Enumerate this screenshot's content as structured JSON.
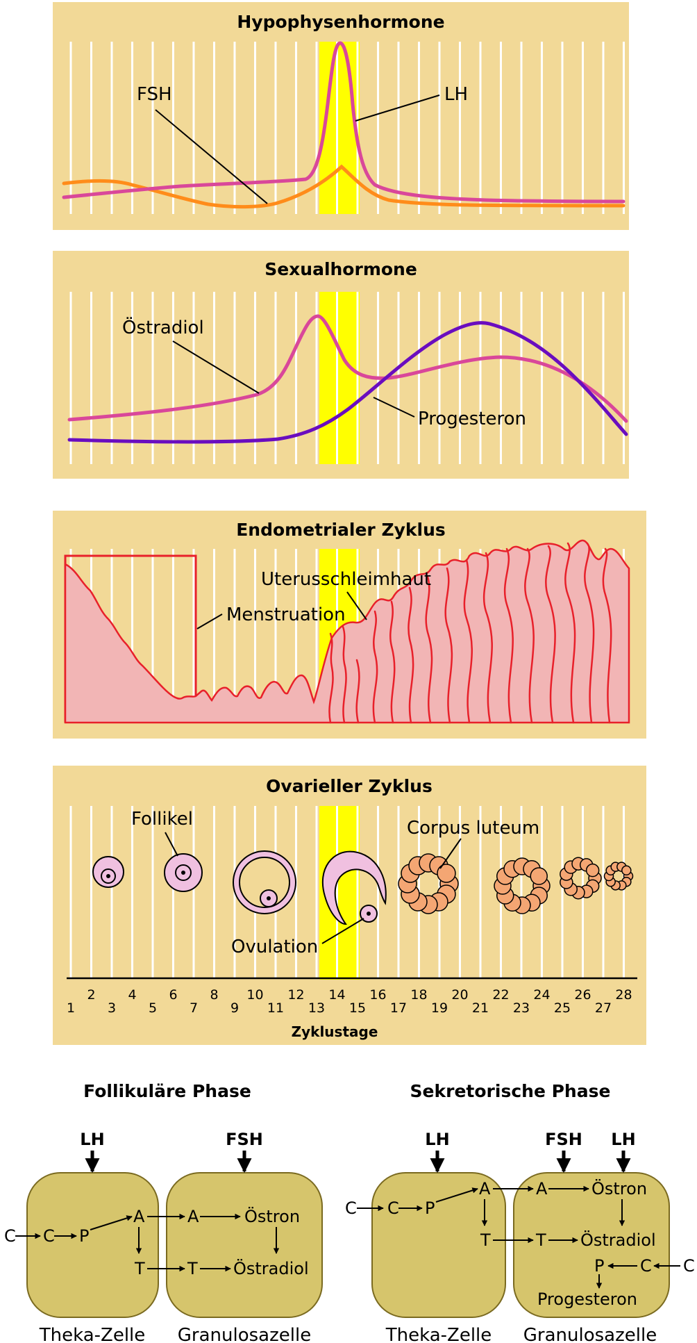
{
  "panels": {
    "hypophyse": {
      "title": "Hypophysenhormone",
      "fsh_label": "FSH",
      "lh_label": "LH"
    },
    "sexual": {
      "title": "Sexualhormone",
      "oestradiol_label": "Östradiol",
      "progesteron_label": "Progesteron"
    },
    "endometrial": {
      "title": "Endometrialer Zyklus",
      "uterus_label": "Uterusschleimhaut",
      "menstruation_label": "Menstruation"
    },
    "ovarian": {
      "title": "Ovarieller Zyklus",
      "follikel_label": "Follikel",
      "corpus_label": "Corpus luteum",
      "ovulation_label": "Ovulation",
      "axis_title": "Zyklustage",
      "days": [
        "1",
        "2",
        "3",
        "4",
        "5",
        "6",
        "7",
        "8",
        "9",
        "10",
        "11",
        "12",
        "13",
        "14",
        "15",
        "16",
        "17",
        "18",
        "19",
        "20",
        "21",
        "22",
        "23",
        "24",
        "25",
        "26",
        "27",
        "28"
      ]
    }
  },
  "colors": {
    "panel_bg": "#f2d997",
    "grid": "#ffffff",
    "ovulation_band": "#ffff00",
    "fsh": "#ff8c1a",
    "lh": "#d9479a",
    "oestradiol": "#d9479a",
    "progesteron": "#6a0dbf",
    "endometrium_fill": "#f2b5b5",
    "endometrium_line": "#e8202a",
    "cell_fill": "#d6c56c",
    "follicle_fill": "#f0c0e0",
    "corpus_fill": "#f4a673"
  },
  "phases": {
    "follicular": {
      "title": "Follikuläre Phase",
      "hormone_lh": "LH",
      "hormone_fsh": "FSH",
      "theca_caption": "Theka-Zelle",
      "granulosa_caption": "Granulosazelle",
      "c_outer": "C",
      "c_inner": "C",
      "p": "P",
      "a_theca": "A",
      "t_theca": "T",
      "a_gran": "A",
      "t_gran": "T",
      "oestron": "Östron",
      "oestradiol": "Östradiol"
    },
    "secretory": {
      "title": "Sekretorische Phase",
      "hormone_lh": "LH",
      "hormone_fsh": "FSH",
      "hormone_lh2": "LH",
      "theca_caption": "Theka-Zelle",
      "granulosa_caption": "Granulosazelle",
      "c_outer": "C",
      "c_inner": "C",
      "p": "P",
      "a_theca": "A",
      "t_theca": "T",
      "a_gran": "A",
      "t_gran": "T",
      "oestron": "Östron",
      "oestradiol": "Östradiol",
      "p_gran": "P",
      "c_gran": "C",
      "c_right": "C",
      "progesteron": "Progesteron"
    }
  }
}
